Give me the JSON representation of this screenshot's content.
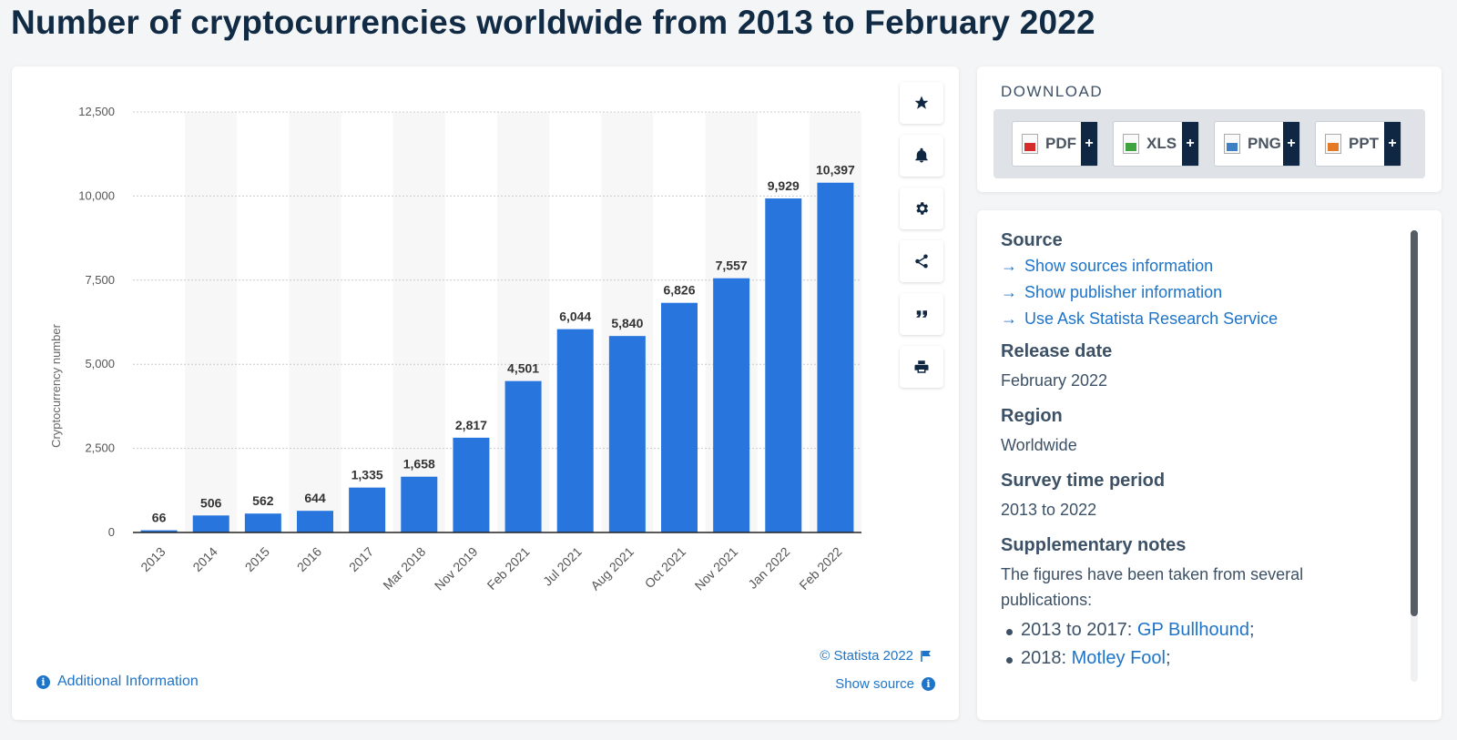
{
  "page": {
    "title": "Number of cryptocurrencies worldwide from 2013 to February 2022"
  },
  "chart_data": {
    "type": "bar",
    "ylabel": "Cryptocurrency number",
    "xlabel": "",
    "ylim": [
      0,
      12500
    ],
    "yticks": [
      0,
      2500,
      5000,
      7500,
      10000,
      12500
    ],
    "ytick_labels": [
      "0",
      "2,500",
      "5,000",
      "7,500",
      "10,000",
      "12,500"
    ],
    "grid": true,
    "categories": [
      "2013",
      "2014",
      "2015",
      "2016",
      "2017",
      "Mar 2018",
      "Nov 2019",
      "Feb 2021",
      "Jul 2021",
      "Aug 2021",
      "Oct 2021",
      "Nov 2021",
      "Jan 2022",
      "Feb 2022"
    ],
    "values": [
      66,
      506,
      562,
      644,
      1335,
      1658,
      2817,
      4501,
      6044,
      5840,
      6826,
      7557,
      9929,
      10397
    ],
    "value_labels": [
      "66",
      "506",
      "562",
      "644",
      "1,335",
      "1,658",
      "2,817",
      "4,501",
      "6,044",
      "5,840",
      "6,826",
      "7,557",
      "9,929",
      "10,397"
    ],
    "bar_color": "#2876dd"
  },
  "footer": {
    "copyright": "© Statista 2022",
    "show_source": "Show source",
    "additional_info": "Additional Information"
  },
  "tools": [
    {
      "name": "favorite",
      "icon": "star-icon"
    },
    {
      "name": "notification",
      "icon": "bell-icon"
    },
    {
      "name": "settings",
      "icon": "gear-icon"
    },
    {
      "name": "share",
      "icon": "share-icon"
    },
    {
      "name": "cite",
      "icon": "quote-icon"
    },
    {
      "name": "print",
      "icon": "printer-icon"
    }
  ],
  "download": {
    "heading": "DOWNLOAD",
    "buttons": [
      {
        "label": "PDF",
        "plus": "+"
      },
      {
        "label": "XLS",
        "plus": "+"
      },
      {
        "label": "PNG",
        "plus": "+"
      },
      {
        "label": "PPT",
        "plus": "+"
      }
    ]
  },
  "info": {
    "source_title": "Source",
    "links": [
      "Show sources information",
      "Show publisher information",
      "Use Ask Statista Research Service"
    ],
    "release_title": "Release date",
    "release_value": "February 2022",
    "region_title": "Region",
    "region_value": "Worldwide",
    "survey_title": "Survey time period",
    "survey_value": "2013 to 2022",
    "notes_title": "Supplementary notes",
    "notes_text": "The figures have been taken from several publications:",
    "notes_items": [
      {
        "prefix": "2013 to 2017: ",
        "link": "GP Bullhound",
        "suffix": ";"
      },
      {
        "prefix": "2018: ",
        "link": "Motley Fool",
        "suffix": ";"
      }
    ]
  }
}
